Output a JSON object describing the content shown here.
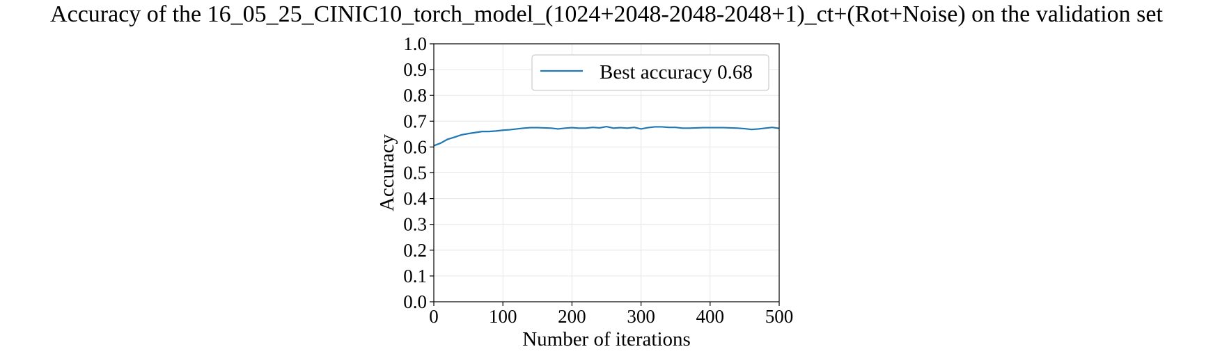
{
  "chart_data": {
    "type": "line",
    "title": "Accuracy of the 16_05_25_CINIC10_torch_model_(1024+2048-2048-2048+1)_ct+(Rot+Noise) on the validation set",
    "xlabel": "Number of iterations",
    "ylabel": "Accuracy",
    "xlim": [
      0,
      500
    ],
    "ylim": [
      0,
      1.0
    ],
    "xticks": [
      "0",
      "100",
      "200",
      "300",
      "400",
      "500"
    ],
    "yticks": [
      "0.0",
      "0.1",
      "0.2",
      "0.3",
      "0.4",
      "0.5",
      "0.6",
      "0.7",
      "0.8",
      "0.9",
      "1.0"
    ],
    "grid": true,
    "legend_position": "upper right",
    "series": [
      {
        "name": "Best accuracy 0.68",
        "color": "#1f77b4",
        "x": [
          0,
          10,
          20,
          30,
          40,
          50,
          60,
          70,
          80,
          90,
          100,
          110,
          120,
          130,
          140,
          150,
          160,
          170,
          180,
          190,
          200,
          210,
          220,
          230,
          240,
          250,
          260,
          270,
          280,
          290,
          300,
          310,
          320,
          330,
          340,
          350,
          360,
          370,
          380,
          390,
          400,
          410,
          420,
          430,
          440,
          450,
          460,
          470,
          480,
          490,
          500
        ],
        "y": [
          0.605,
          0.615,
          0.63,
          0.638,
          0.647,
          0.652,
          0.656,
          0.66,
          0.66,
          0.662,
          0.665,
          0.667,
          0.67,
          0.673,
          0.675,
          0.675,
          0.674,
          0.673,
          0.67,
          0.673,
          0.675,
          0.673,
          0.673,
          0.676,
          0.674,
          0.679,
          0.673,
          0.675,
          0.673,
          0.676,
          0.67,
          0.675,
          0.678,
          0.678,
          0.676,
          0.676,
          0.673,
          0.673,
          0.674,
          0.675,
          0.675,
          0.675,
          0.675,
          0.674,
          0.673,
          0.671,
          0.668,
          0.67,
          0.673,
          0.676,
          0.672
        ]
      }
    ]
  }
}
